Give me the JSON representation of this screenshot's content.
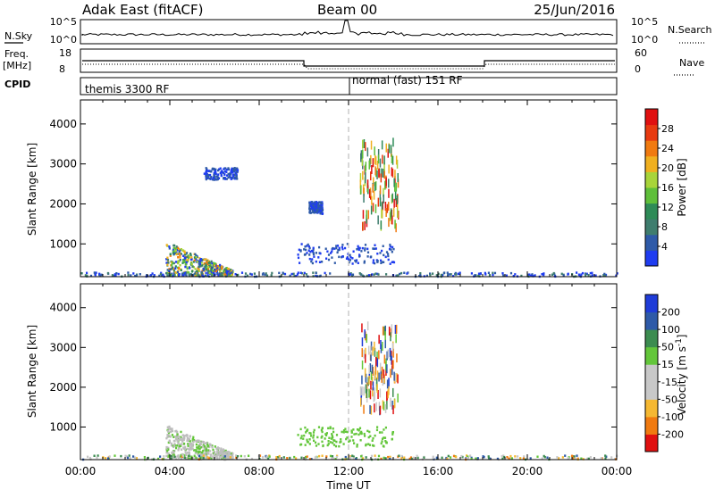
{
  "header": {
    "station": "Adak East (fitACF)",
    "beam": "Beam 00",
    "date": "25/Jun/2016"
  },
  "top_panels": {
    "nsky_label": "N.Sky",
    "nsearch_label": "N.Search",
    "nsky_ticks": [
      "10^5",
      "10^0"
    ],
    "nsearch_ticks": [
      "10^5",
      "10^0"
    ],
    "freq_label_lines": [
      "Freq.",
      "[MHz]"
    ],
    "freq_ticks": [
      "18",
      "8"
    ],
    "nave_label": "Nave",
    "nave_ticks": [
      "60",
      "0"
    ],
    "cpid_label": "CPID",
    "cpid_segments": [
      {
        "start_hour": 0,
        "label": "themis 3300 RF"
      },
      {
        "start_hour": 12,
        "label": "normal (fast) 151 RF"
      }
    ]
  },
  "colors": {
    "power_scale": [
      "#1f3cf0",
      "#2e5aa8",
      "#3f7d6e",
      "#2e8b57",
      "#5fbf3a",
      "#a8d43a",
      "#f0b020",
      "#f07a10",
      "#e83a10",
      "#e01010"
    ],
    "velocity_scale": [
      "#e01010",
      "#f07a10",
      "#f5b832",
      "#c8c8c8",
      "#c8c8c8",
      "#63c63a",
      "#3c8c50",
      "#2e5aa8",
      "#1f3cd8"
    ],
    "ground_scatter": "#bdbdbd",
    "line": "#000000"
  },
  "chart_data": [
    {
      "type": "heatmap",
      "name": "power",
      "xlabel": "",
      "ylabel": "Slant Range [km]",
      "colorbar_label": "Power [dB]",
      "colorbar_ticks": [
        "28",
        "24",
        "20",
        "16",
        "12",
        "8",
        "4"
      ],
      "xlim_hours": [
        0,
        24
      ],
      "ylim_km": [
        180,
        4600
      ],
      "ytick_labels": [
        "1000",
        "2000",
        "3000",
        "4000"
      ],
      "marker_hour": 12,
      "regions": [
        {
          "t0": 3.8,
          "t1": 6.8,
          "r0": 200,
          "r1": 1050,
          "level": "mixed-high"
        },
        {
          "t0": 9.7,
          "t1": 14.0,
          "r0": 500,
          "r1": 1000,
          "level": "low"
        },
        {
          "t0": 10.2,
          "t1": 10.8,
          "r0": 1750,
          "r1": 2050,
          "level": "low"
        },
        {
          "t0": 12.5,
          "t1": 14.2,
          "r0": 1400,
          "r1": 3550,
          "level": "high"
        },
        {
          "t0": 5.5,
          "t1": 7.0,
          "r0": 2600,
          "r1": 2900,
          "level": "low"
        },
        {
          "t0": 0.0,
          "t1": 24.0,
          "r0": 180,
          "r1": 380,
          "level": "noise"
        }
      ]
    },
    {
      "type": "heatmap",
      "name": "velocity",
      "xlabel": "Time UT",
      "ylabel": "Slant Range [km]",
      "colorbar_label": "Velocity [m s^-1]",
      "colorbar_ticks": [
        "200",
        "100",
        "50",
        "15",
        "-15",
        "-50",
        "-100",
        "-200"
      ],
      "xlim_hours": [
        0,
        24
      ],
      "ylim_km": [
        180,
        4600
      ],
      "ytick_labels": [
        "1000",
        "2000",
        "3000",
        "4000"
      ],
      "xtick_labels": [
        "00:00",
        "04:00",
        "08:00",
        "12:00",
        "16:00",
        "20:00",
        "00:00"
      ],
      "marker_hour": 12,
      "regions": [
        {
          "t0": 3.8,
          "t1": 6.8,
          "r0": 200,
          "r1": 1050,
          "level": "ground-scatter"
        },
        {
          "t0": 9.7,
          "t1": 14.0,
          "r0": 500,
          "r1": 1000,
          "level": "slow-positive"
        },
        {
          "t0": 12.5,
          "t1": 14.2,
          "r0": 1400,
          "r1": 3550,
          "level": "mixed"
        },
        {
          "t0": 0.0,
          "t1": 24.0,
          "r0": 180,
          "r1": 380,
          "level": "noise"
        }
      ]
    }
  ]
}
